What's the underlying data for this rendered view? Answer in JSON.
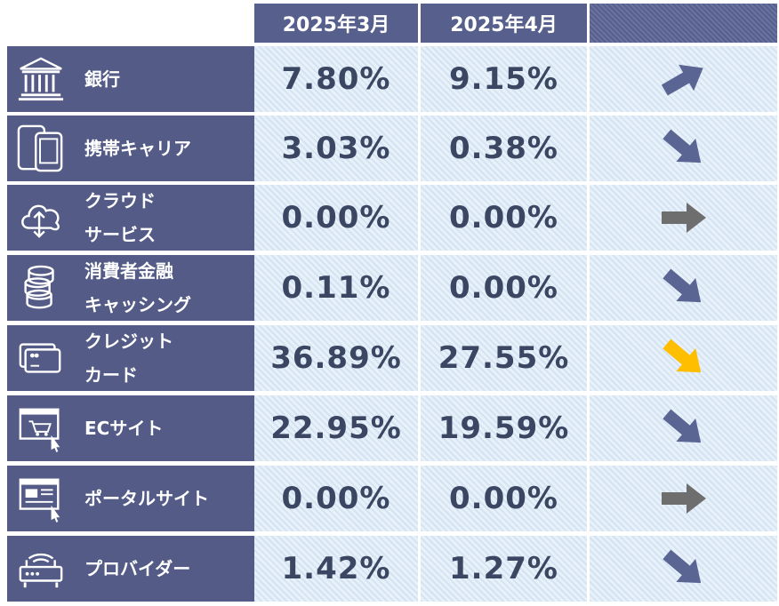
{
  "headers": {
    "col1": "2025年3月",
    "col2": "2025年4月",
    "col3": ""
  },
  "rows": [
    {
      "icon": "bank-icon",
      "label_lines": [
        "銀行"
      ],
      "march": "7.80%",
      "april": "9.15%",
      "trend": "up",
      "arrow_color": "#5a6594"
    },
    {
      "icon": "mobile-phone-icon",
      "label_lines": [
        "携帯キャリア"
      ],
      "march": "3.03%",
      "april": "0.38%",
      "trend": "down",
      "arrow_color": "#5a6594"
    },
    {
      "icon": "cloud-icon",
      "label_lines": [
        "クラウド",
        "サービス"
      ],
      "march": "0.00%",
      "april": "0.00%",
      "trend": "flat",
      "arrow_color": "#6e6e6e"
    },
    {
      "icon": "coins-icon",
      "label_lines": [
        "消費者金融",
        "キャッシング"
      ],
      "march": "0.11%",
      "april": "0.00%",
      "trend": "down",
      "arrow_color": "#5a6594"
    },
    {
      "icon": "credit-card-icon",
      "label_lines": [
        "クレジット",
        "カード"
      ],
      "march": "36.89%",
      "april": "27.55%",
      "trend": "down",
      "arrow_color": "#ffbe00"
    },
    {
      "icon": "shopping-cart-icon",
      "label_lines": [
        "ECサイト"
      ],
      "march": "22.95%",
      "april": "19.59%",
      "trend": "down",
      "arrow_color": "#5a6594"
    },
    {
      "icon": "portal-site-icon",
      "label_lines": [
        "ポータルサイト"
      ],
      "march": "0.00%",
      "april": "0.00%",
      "trend": "flat",
      "arrow_color": "#6e6e6e"
    },
    {
      "icon": "router-icon",
      "label_lines": [
        "プロバイダー"
      ],
      "march": "1.42%",
      "april": "1.27%",
      "trend": "down",
      "arrow_color": "#5a6594"
    }
  ]
}
